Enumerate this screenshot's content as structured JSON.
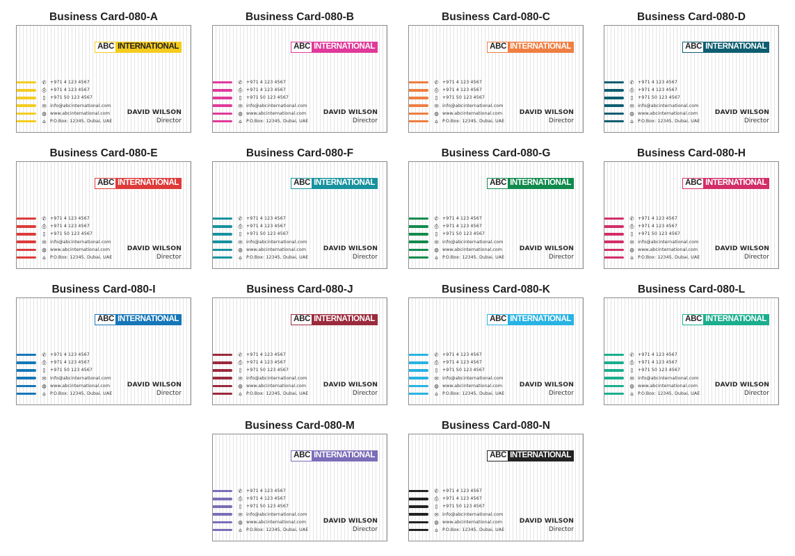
{
  "company": {
    "abc": "ABC",
    "intl": "INTERNATIONAL"
  },
  "contacts": [
    {
      "icon": "phone-icon",
      "glyph": "✆",
      "text": "+971 4 123 4567"
    },
    {
      "icon": "fax-icon",
      "glyph": "⎙",
      "text": "+971 4 123 4567"
    },
    {
      "icon": "mobile-icon",
      "glyph": "▯",
      "text": "+971 50 123 4567"
    },
    {
      "icon": "email-icon",
      "glyph": "✉",
      "text": "info@abcinternational.com"
    },
    {
      "icon": "globe-icon",
      "glyph": "◍",
      "text": "www.abcinternational.com"
    },
    {
      "icon": "home-icon",
      "glyph": "⌂",
      "text": "P.O.Box: 12345, Dubai, UAE"
    }
  ],
  "person": {
    "name": "DAVID WILSON",
    "role": "Director"
  },
  "cards": [
    {
      "title": "Business Card-080-A",
      "color": "#f5cc1d",
      "light": true
    },
    {
      "title": "Business Card-080-B",
      "color": "#e0399a",
      "light": false
    },
    {
      "title": "Business Card-080-C",
      "color": "#ee7e41",
      "light": false
    },
    {
      "title": "Business Card-080-D",
      "color": "#0c5d70",
      "light": false
    },
    {
      "title": "Business Card-080-E",
      "color": "#de3a3a",
      "light": false
    },
    {
      "title": "Business Card-080-F",
      "color": "#16929e",
      "light": false
    },
    {
      "title": "Business Card-080-G",
      "color": "#108a4c",
      "light": false
    },
    {
      "title": "Business Card-080-H",
      "color": "#d22e68",
      "light": false
    },
    {
      "title": "Business Card-080-I",
      "color": "#1577b8",
      "light": false
    },
    {
      "title": "Business Card-080-J",
      "color": "#9a2a3c",
      "light": false
    },
    {
      "title": "Business Card-080-K",
      "color": "#27b3e3",
      "light": false
    },
    {
      "title": "Business Card-080-L",
      "color": "#1aae8e",
      "light": false
    },
    {
      "title": "Business Card-080-M",
      "color": "#7b6db8",
      "light": false
    },
    {
      "title": "Business Card-080-N",
      "color": "#222222",
      "light": false
    }
  ]
}
